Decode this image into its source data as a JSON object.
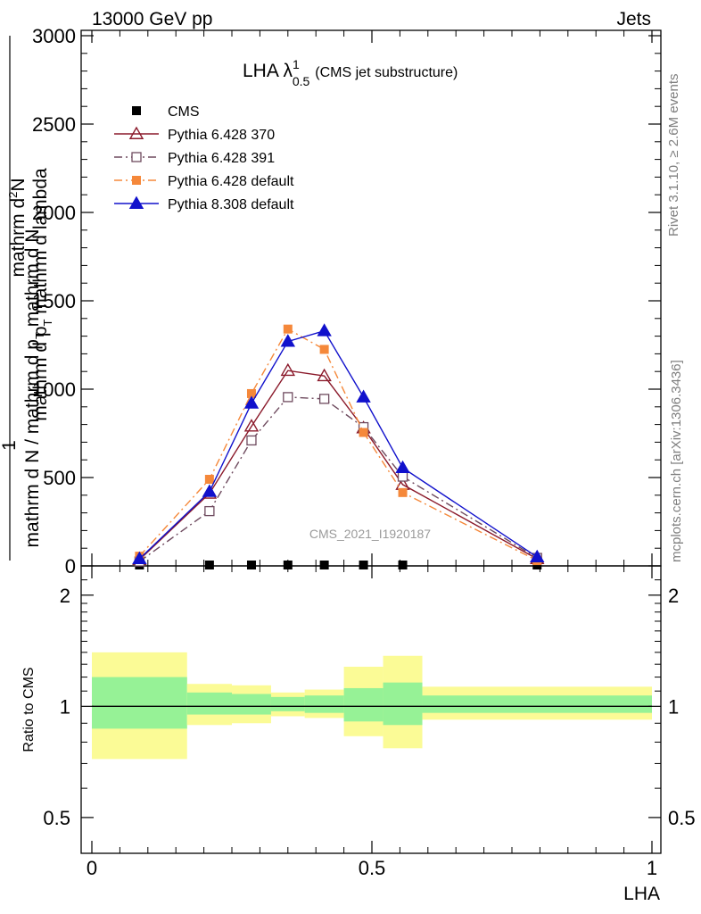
{
  "header": {
    "left": "13000 GeV pp",
    "right": "Jets"
  },
  "title": {
    "main": "LHA λ",
    "sup": "1",
    "sub": "0.5",
    "suffix": "(CMS jet substructure)"
  },
  "side_labels": {
    "top": "Rivet 3.1.10, ≥ 2.6M events",
    "bottom": "mcplots.cern.ch [arXiv:1306.3436]"
  },
  "watermark": "CMS_2021_I1920187",
  "ylabel_main": {
    "numerator_line1": "1",
    "numerator_line2": "mathrm d N / mathrm d p",
    "numerator_sub": "T",
    "numerator_line3": " mathrm d N",
    "fraction_top": "mathrm d",
    "fraction_top_sup": "2",
    "fraction_top_rest": "N",
    "fraction_bottom": "mathrm d p",
    "fraction_bottom_sub": "T",
    "fraction_bottom_rest": " mathrm d lambda"
  },
  "ylabel_ratio": "Ratio to CMS",
  "xlabel": "LHA",
  "chart_data": [
    {
      "type": "line",
      "panel": "main",
      "xlim": [
        0,
        1
      ],
      "ylim": [
        0,
        3000
      ],
      "yticks": [
        {
          "value": 0,
          "label": "0"
        },
        {
          "value": 500,
          "label": "500"
        },
        {
          "value": 1000,
          "label": "1000"
        },
        {
          "value": 1500,
          "label": "1500"
        },
        {
          "value": 2000,
          "label": "2000"
        },
        {
          "value": 2500,
          "label": "2500"
        },
        {
          "value": 3000,
          "label": "3000"
        }
      ],
      "legend_position": "top-left",
      "series": [
        {
          "name": "CMS",
          "style": "data-square",
          "color": "#000000",
          "x": [
            0.085,
            0.21,
            0.285,
            0.35,
            0.415,
            0.485,
            0.555,
            0.795
          ],
          "y": [
            0,
            0,
            0,
            0,
            0,
            0,
            0,
            0
          ]
        },
        {
          "name": "Pythia 6.428 370",
          "style": "solid-open-triangle",
          "color": "#8b1a2b",
          "x": [
            0.085,
            0.21,
            0.285,
            0.35,
            0.415,
            0.485,
            0.555,
            0.795
          ],
          "y": [
            35,
            410,
            790,
            1105,
            1075,
            780,
            460,
            40
          ]
        },
        {
          "name": "Pythia 6.428 391",
          "style": "dashdot-open-square",
          "color": "#6e4a5e",
          "x": [
            0.085,
            0.21,
            0.285,
            0.35,
            0.415,
            0.485,
            0.555,
            0.795
          ],
          "y": [
            25,
            310,
            710,
            955,
            945,
            785,
            505,
            45
          ]
        },
        {
          "name": "Pythia 6.428 default",
          "style": "dashdot-filled-square",
          "color": "#f5883a",
          "x": [
            0.085,
            0.21,
            0.285,
            0.35,
            0.415,
            0.485,
            0.555,
            0.795
          ],
          "y": [
            55,
            490,
            975,
            1340,
            1225,
            755,
            415,
            30
          ]
        },
        {
          "name": "Pythia 8.308 default",
          "style": "solid-filled-triangle",
          "color": "#1111cc",
          "x": [
            0.085,
            0.21,
            0.285,
            0.35,
            0.415,
            0.485,
            0.555,
            0.795
          ],
          "y": [
            40,
            420,
            920,
            1270,
            1330,
            955,
            555,
            50
          ]
        }
      ]
    },
    {
      "type": "area",
      "panel": "ratio",
      "xlim": [
        0,
        1
      ],
      "ylim": [
        0.4,
        2.4
      ],
      "scale": "log",
      "yticks": [
        {
          "value": 0.5,
          "label": "0.5"
        },
        {
          "value": 1,
          "label": "1"
        },
        {
          "value": 2,
          "label": "2"
        }
      ],
      "xticks": [
        {
          "value": 0,
          "label": "0"
        },
        {
          "value": 0.5,
          "label": "0.5"
        },
        {
          "value": 1,
          "label": "1"
        }
      ],
      "bins": [
        {
          "x0": 0.0,
          "x1": 0.17,
          "stat_lo": 0.87,
          "stat_hi": 1.2,
          "tot_lo": 0.72,
          "tot_hi": 1.4
        },
        {
          "x0": 0.17,
          "x1": 0.25,
          "stat_lo": 0.95,
          "stat_hi": 1.09,
          "tot_lo": 0.89,
          "tot_hi": 1.15
        },
        {
          "x0": 0.25,
          "x1": 0.32,
          "stat_lo": 0.95,
          "stat_hi": 1.08,
          "tot_lo": 0.9,
          "tot_hi": 1.14
        },
        {
          "x0": 0.32,
          "x1": 0.38,
          "stat_lo": 0.97,
          "stat_hi": 1.06,
          "tot_lo": 0.94,
          "tot_hi": 1.09
        },
        {
          "x0": 0.38,
          "x1": 0.45,
          "stat_lo": 0.96,
          "stat_hi": 1.07,
          "tot_lo": 0.93,
          "tot_hi": 1.11
        },
        {
          "x0": 0.45,
          "x1": 0.52,
          "stat_lo": 0.91,
          "stat_hi": 1.12,
          "tot_lo": 0.83,
          "tot_hi": 1.28
        },
        {
          "x0": 0.52,
          "x1": 0.59,
          "stat_lo": 0.89,
          "stat_hi": 1.16,
          "tot_lo": 0.77,
          "tot_hi": 1.37
        },
        {
          "x0": 0.59,
          "x1": 1.0,
          "stat_lo": 0.96,
          "stat_hi": 1.07,
          "tot_lo": 0.92,
          "tot_hi": 1.13
        }
      ],
      "stat_color": "#96f296",
      "total_color": "#fbfb96",
      "reference_line": 1
    }
  ]
}
